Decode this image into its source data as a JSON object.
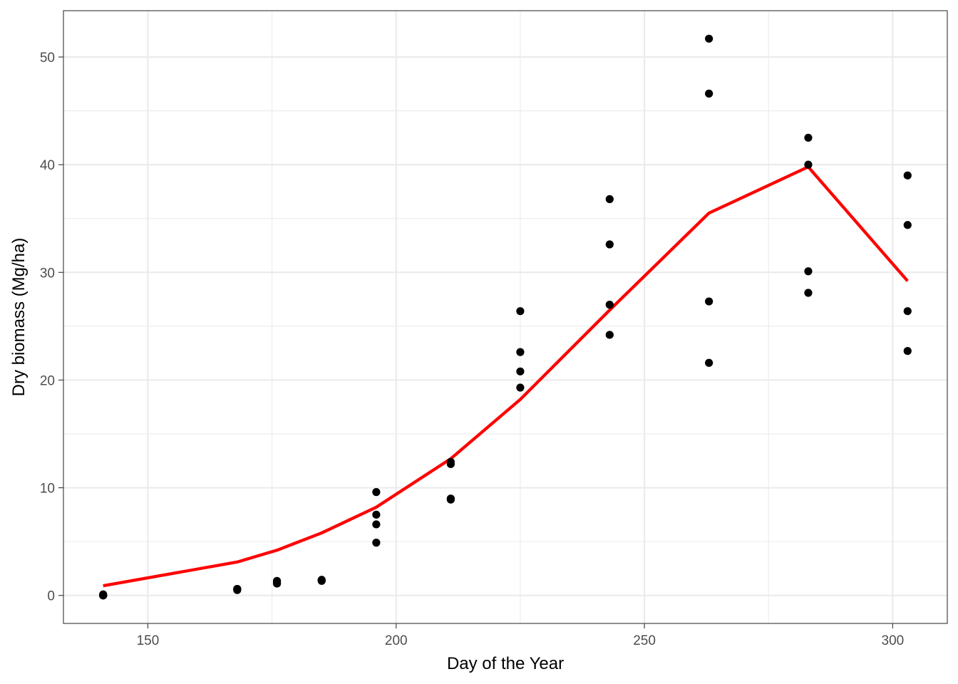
{
  "chart_data": {
    "type": "scatter",
    "xlabel": "Day of the Year",
    "ylabel": "Dry biomass (Mg/ha)",
    "xlim": [
      133,
      311
    ],
    "ylim": [
      -2.6,
      54.3
    ],
    "x_ticks": [
      150,
      200,
      250,
      300
    ],
    "y_ticks": [
      0,
      10,
      20,
      30,
      40,
      50
    ],
    "grid": true,
    "colors": {
      "points": "#000000",
      "line": "#ff0000",
      "grid": "#ebebeb",
      "border": "#333333"
    },
    "series": [
      {
        "kind": "points",
        "x": [
          141,
          141,
          141,
          141,
          168,
          168,
          168,
          176,
          176,
          176,
          185,
          185,
          185,
          196,
          196,
          196,
          196,
          211,
          211,
          211,
          211,
          225,
          225,
          225,
          225,
          243,
          243,
          243,
          243,
          263,
          263,
          263,
          263,
          283,
          283,
          283,
          283,
          303,
          303,
          303,
          303
        ],
        "y": [
          0.0,
          0.0,
          0.0,
          0.1,
          0.5,
          0.6,
          0.6,
          1.1,
          1.2,
          1.35,
          1.35,
          1.4,
          1.45,
          9.6,
          7.5,
          6.6,
          4.9,
          12.4,
          12.2,
          9.0,
          8.9,
          26.4,
          22.6,
          20.8,
          19.3,
          36.8,
          32.6,
          27.0,
          24.2,
          51.7,
          46.6,
          27.3,
          21.6,
          42.5,
          40.0,
          30.1,
          28.1,
          39.0,
          34.4,
          26.4,
          22.7
        ]
      },
      {
        "kind": "line",
        "x": [
          141,
          168,
          176,
          185,
          196,
          211,
          225,
          243,
          263,
          283,
          303
        ],
        "y": [
          0.9,
          3.1,
          4.2,
          5.8,
          8.2,
          12.7,
          18.2,
          26.5,
          35.5,
          39.8,
          29.2
        ]
      }
    ]
  }
}
